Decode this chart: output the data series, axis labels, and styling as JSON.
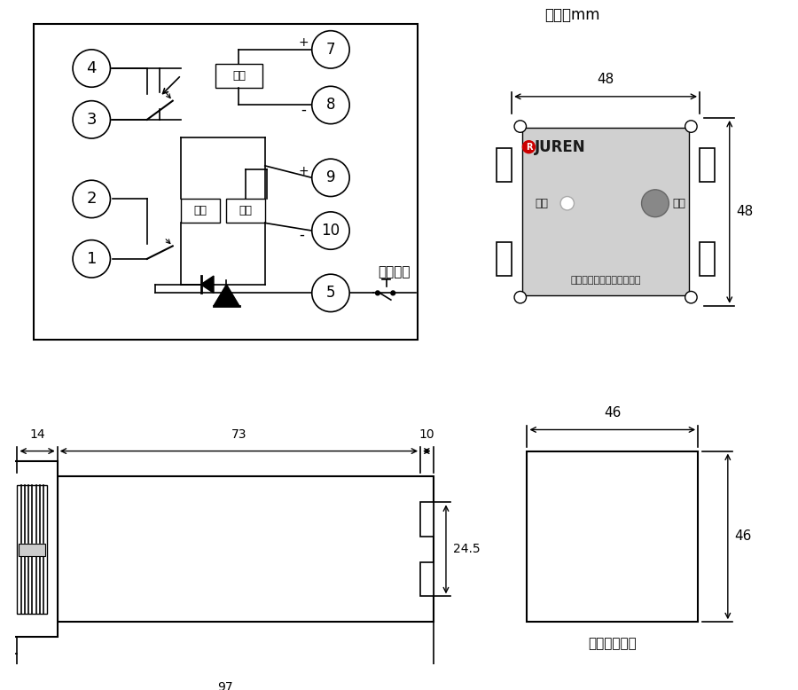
{
  "bg_color": "#ffffff",
  "line_color": "#000000",
  "gray_color": "#cccccc",
  "dark_gray": "#888888",
  "red_color": "#cc0000",
  "unit_text": "单位：mm",
  "company_text": "上海聚仁电力科技有限公司",
  "juren_text": "JUREN",
  "dong_zuo": "动作",
  "fu_wei_label": "复位",
  "yuan_fang_fu_gui": "远方复归",
  "mian_ban_text": "面板开孔尺寸",
  "dim_48_horiz": "48",
  "dim_48_vert": "48",
  "dim_46_horiz": "46",
  "dim_46_vert": "46",
  "dim_14": "14",
  "dim_73": "73",
  "dim_10": "10",
  "dim_97": "97",
  "dim_245": "24.5",
  "qi_dong": "启动",
  "fu_gui": "复归",
  "fu_yuan": "辅源"
}
